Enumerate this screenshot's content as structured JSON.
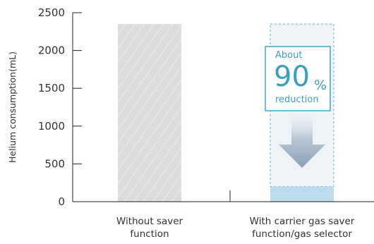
{
  "chart_data": {
    "type": "bar",
    "categories": [
      [
        "Without saver",
        "function"
      ],
      [
        "With carrier gas saver",
        "function/gas selector"
      ]
    ],
    "values": [
      2350,
      200
    ],
    "reference_level": 2350,
    "ylabel": "Helium consumption(mL)",
    "ylim": [
      0,
      2500
    ],
    "yticks": [
      0,
      500,
      1000,
      1500,
      2000,
      2500
    ],
    "grid": false,
    "annotation": {
      "line1": "About",
      "number": "90",
      "unit": "%",
      "line2": "reduction"
    },
    "colors": {
      "bar_without": "#dcdcdc",
      "bar_with": "#bcdcec",
      "ghost_fill": "#eef3f8",
      "accent": "#3a9fbf",
      "arrow": "#94a9bd",
      "axis": "#222222"
    }
  }
}
